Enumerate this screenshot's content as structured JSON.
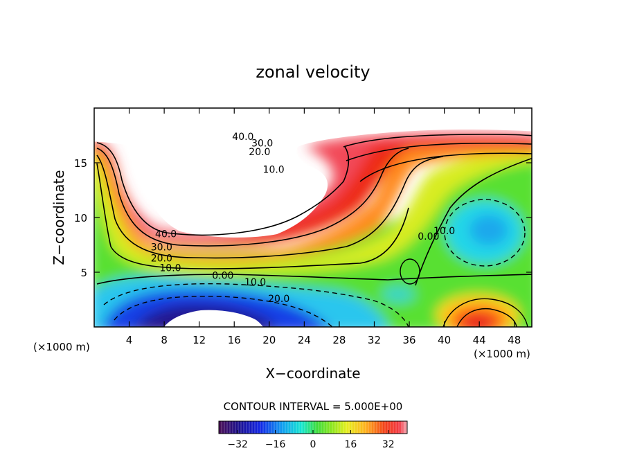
{
  "chart_data": {
    "type": "contour",
    "title": "zonal velocity",
    "xlabel": "X−coordinate",
    "ylabel": "Z−coordinate",
    "x_unit_left": "(×1000 m)",
    "x_unit_right": "(×1000 m)",
    "xlim": [
      0,
      50
    ],
    "ylim": [
      0,
      20
    ],
    "xticks": [
      4,
      8,
      12,
      16,
      20,
      24,
      28,
      32,
      36,
      40,
      44,
      48
    ],
    "xtick_labels": [
      "4",
      "8",
      "12",
      "16",
      "20",
      "24",
      "28",
      "32",
      "36",
      "40",
      "44",
      "48"
    ],
    "yticks": [
      5,
      10,
      15
    ],
    "ytick_labels": [
      "5",
      "10",
      "15"
    ],
    "contour_interval_text": "CONTOUR INTERVAL = 5.000E+00",
    "contour_interval": 5,
    "contour_labels": [
      {
        "text": "40.0",
        "x": 17.0,
        "z": 17.4
      },
      {
        "text": "30.0",
        "x": 19.2,
        "z": 16.8
      },
      {
        "text": "20.0",
        "x": 18.9,
        "z": 16.0
      },
      {
        "text": "10.0",
        "x": 20.5,
        "z": 14.4
      },
      {
        "text": "10.0",
        "x": 40.0,
        "z": 8.8
      },
      {
        "text": "0.00",
        "x": 38.2,
        "z": 8.3
      },
      {
        "text": "40.0",
        "x": 8.2,
        "z": 8.5
      },
      {
        "text": "30.0",
        "x": 7.7,
        "z": 7.3
      },
      {
        "text": "20.0",
        "x": 7.7,
        "z": 6.3
      },
      {
        "text": "10.0",
        "x": 8.7,
        "z": 5.4
      },
      {
        "text": "0.00",
        "x": 14.7,
        "z": 4.7
      },
      {
        "text": "10.0",
        "x": 18.4,
        "z": 4.1
      },
      {
        "text": "20.0",
        "x": 21.1,
        "z": 2.6
      }
    ],
    "colorbar": {
      "min": -40,
      "max": 40,
      "ticks": [
        -32,
        -16,
        0,
        16,
        32
      ],
      "tick_labels": [
        "−32",
        "−16",
        "0",
        "16",
        "32"
      ]
    }
  }
}
